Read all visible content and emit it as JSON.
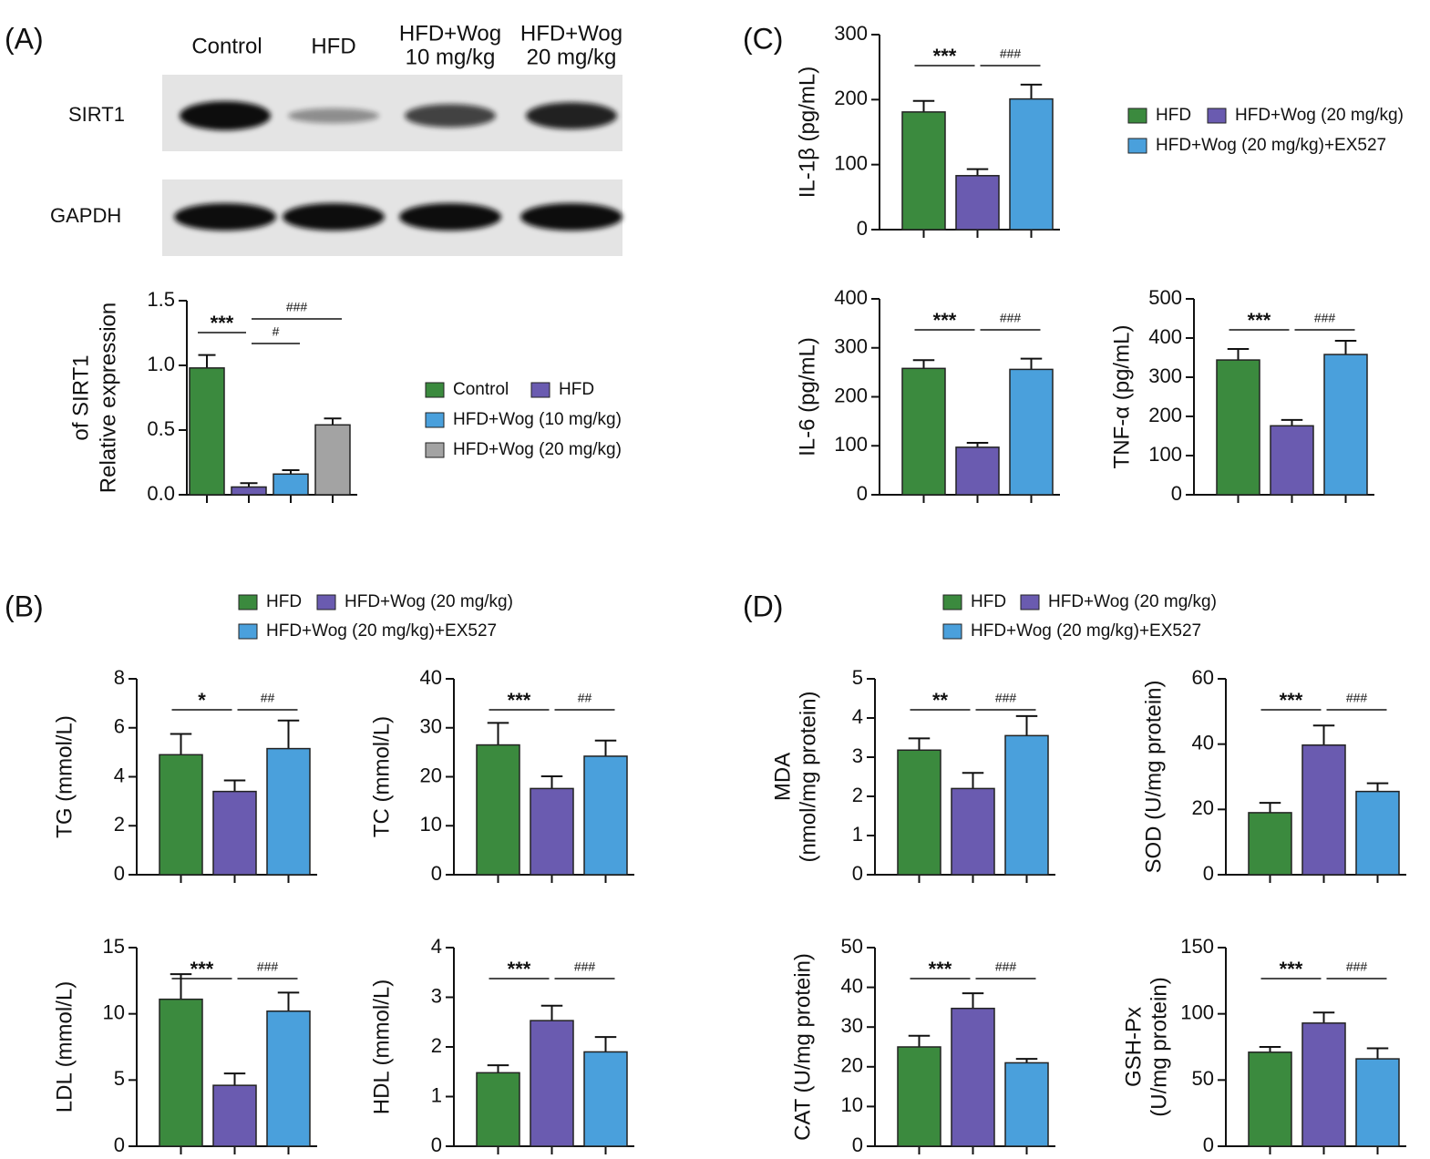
{
  "chart_data": [
    {
      "type": "bar",
      "label": "(A)",
      "blot": {
        "lanes": [
          [
            "Control"
          ],
          [
            "HFD"
          ],
          [
            "HFD+Wog",
            "10 mg/kg"
          ],
          [
            "HFD+Wog",
            "20 mg/kg"
          ]
        ],
        "rows": [
          "SIRT1",
          "GAPDH"
        ]
      },
      "series": [
        {
          "name": "Control",
          "color": "#3b8a3e"
        },
        {
          "name": "HFD",
          "color": "#6a5bb0"
        },
        {
          "name": "HFD+Wog (10 mg/kg)",
          "color": "#4aa0dc"
        },
        {
          "name": "HFD+Wog (20 mg/kg)",
          "color": "#a3a3a3"
        }
      ],
      "charts": [
        {
          "ylabel": [
            "Relative expression",
            "of SIRT1"
          ],
          "values": [
            0.98,
            0.06,
            0.16,
            0.54
          ],
          "errors": [
            0.1,
            0.03,
            0.03,
            0.05
          ],
          "ylim": [
            0,
            1.5
          ],
          "yticks": [
            {
              "value": 0,
              "label": "0.0"
            },
            {
              "value": 0.5,
              "label": "0.5"
            },
            {
              "value": 1,
              "label": "1.0"
            },
            {
              "value": 1.5,
              "label": "1.5"
            }
          ],
          "annotations": [
            "***",
            "#",
            "###"
          ]
        }
      ]
    },
    {
      "type": "bar",
      "label": "(C)",
      "series": [
        {
          "name": "HFD",
          "color": "#3b8a3e"
        },
        {
          "name": "HFD+Wog (20 mg/kg)",
          "color": "#6a5bb0"
        },
        {
          "name": "HFD+Wog (20 mg/kg)+EX527",
          "color": "#4aa0dc"
        }
      ],
      "charts": [
        {
          "ylabel": [
            "IL-1β (pg/mL)"
          ],
          "values": [
            181,
            83,
            201
          ],
          "errors": [
            17,
            10,
            22
          ],
          "ylim": [
            0,
            300
          ],
          "yticks": [
            0,
            100,
            200,
            300
          ],
          "annotations": [
            "***",
            "###"
          ]
        },
        {
          "ylabel": [
            "IL-6 (pg/mL)"
          ],
          "values": [
            258,
            97,
            256
          ],
          "errors": [
            17,
            9,
            22
          ],
          "ylim": [
            0,
            400
          ],
          "yticks": [
            0,
            100,
            200,
            300,
            400
          ],
          "annotations": [
            "***",
            "###"
          ]
        },
        {
          "ylabel": [
            "TNF-α (pg/mL)"
          ],
          "values": [
            344,
            176,
            358
          ],
          "errors": [
            28,
            15,
            35
          ],
          "ylim": [
            0,
            500
          ],
          "yticks": [
            0,
            100,
            200,
            300,
            400,
            500
          ],
          "annotations": [
            "***",
            "###"
          ]
        }
      ]
    },
    {
      "type": "bar",
      "label": "(B)",
      "series": [
        {
          "name": "HFD",
          "color": "#3b8a3e"
        },
        {
          "name": "HFD+Wog (20 mg/kg)",
          "color": "#6a5bb0"
        },
        {
          "name": "HFD+Wog (20 mg/kg)+EX527",
          "color": "#4aa0dc"
        }
      ],
      "charts": [
        {
          "ylabel": [
            "TG (mmol/L)"
          ],
          "values": [
            4.9,
            3.4,
            5.15
          ],
          "errors": [
            0.85,
            0.45,
            1.15
          ],
          "ylim": [
            0,
            8
          ],
          "yticks": [
            0,
            2,
            4,
            6,
            8
          ],
          "annotations": [
            "*",
            "##"
          ]
        },
        {
          "ylabel": [
            "TC (mmol/L)"
          ],
          "values": [
            26.5,
            17.6,
            24.2
          ],
          "errors": [
            4.5,
            2.5,
            3.2
          ],
          "ylim": [
            0,
            40
          ],
          "yticks": [
            0,
            10,
            20,
            30,
            40
          ],
          "annotations": [
            "***",
            "##"
          ]
        },
        {
          "ylabel": [
            "LDL (mmol/L)"
          ],
          "values": [
            11.1,
            4.6,
            10.2
          ],
          "errors": [
            1.9,
            0.9,
            1.4
          ],
          "ylim": [
            0,
            15
          ],
          "yticks": [
            0,
            5,
            10,
            15
          ],
          "annotations": [
            "***",
            "###"
          ]
        },
        {
          "ylabel": [
            "HDL (mmol/L)"
          ],
          "values": [
            1.48,
            2.53,
            1.9
          ],
          "errors": [
            0.15,
            0.3,
            0.3
          ],
          "ylim": [
            0,
            4
          ],
          "yticks": [
            0,
            1,
            2,
            3,
            4
          ],
          "annotations": [
            "***",
            "###"
          ]
        }
      ]
    },
    {
      "type": "bar",
      "label": "(D)",
      "series": [
        {
          "name": "HFD",
          "color": "#3b8a3e"
        },
        {
          "name": "HFD+Wog (20 mg/kg)",
          "color": "#6a5bb0"
        },
        {
          "name": "HFD+Wog (20 mg/kg)+EX527",
          "color": "#4aa0dc"
        }
      ],
      "charts": [
        {
          "ylabel": [
            "MDA",
            "(nmol/mg protein)"
          ],
          "values": [
            3.18,
            2.2,
            3.55
          ],
          "errors": [
            0.3,
            0.4,
            0.5
          ],
          "ylim": [
            0,
            5
          ],
          "yticks": [
            0,
            1,
            2,
            3,
            4,
            5
          ],
          "annotations": [
            "**",
            "###"
          ]
        },
        {
          "ylabel": [
            "SOD (U/mg protein)"
          ],
          "values": [
            19,
            39.7,
            25.5
          ],
          "errors": [
            3,
            6,
            2.5
          ],
          "ylim": [
            0,
            60
          ],
          "yticks": [
            0,
            20,
            40,
            60
          ],
          "annotations": [
            "***",
            "###"
          ]
        },
        {
          "ylabel": [
            "CAT (U/mg protein)"
          ],
          "values": [
            25,
            34.7,
            21
          ],
          "errors": [
            2.8,
            3.8,
            1
          ],
          "ylim": [
            0,
            50
          ],
          "yticks": [
            0,
            10,
            20,
            30,
            40,
            50
          ],
          "annotations": [
            "***",
            "###"
          ]
        },
        {
          "ylabel": [
            "GSH-Px",
            "(U/mg protein)"
          ],
          "values": [
            71,
            93,
            66
          ],
          "errors": [
            4,
            8,
            8
          ],
          "ylim": [
            0,
            150
          ],
          "yticks": [
            0,
            50,
            100,
            150
          ],
          "annotations": [
            "***",
            "###"
          ]
        }
      ]
    }
  ]
}
